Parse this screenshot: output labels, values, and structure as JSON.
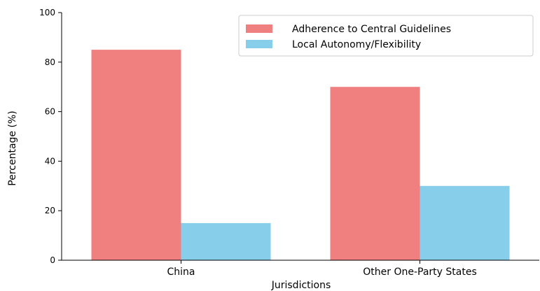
{
  "chart_data": {
    "type": "bar",
    "title": "",
    "xlabel": "Jurisdictions",
    "ylabel": "Percentage (%)",
    "ylim": [
      0,
      100
    ],
    "yticks": [
      0,
      20,
      40,
      60,
      80,
      100
    ],
    "categories": [
      "China",
      "Other One-Party States"
    ],
    "series": [
      {
        "name": "Adherence to Central Guidelines",
        "values": [
          85,
          70
        ],
        "color": "#f08080"
      },
      {
        "name": "Local Autonomy/Flexibility",
        "values": [
          15,
          30
        ],
        "color": "#87ceeb"
      }
    ],
    "legend_position": "top-right",
    "grid": false
  }
}
